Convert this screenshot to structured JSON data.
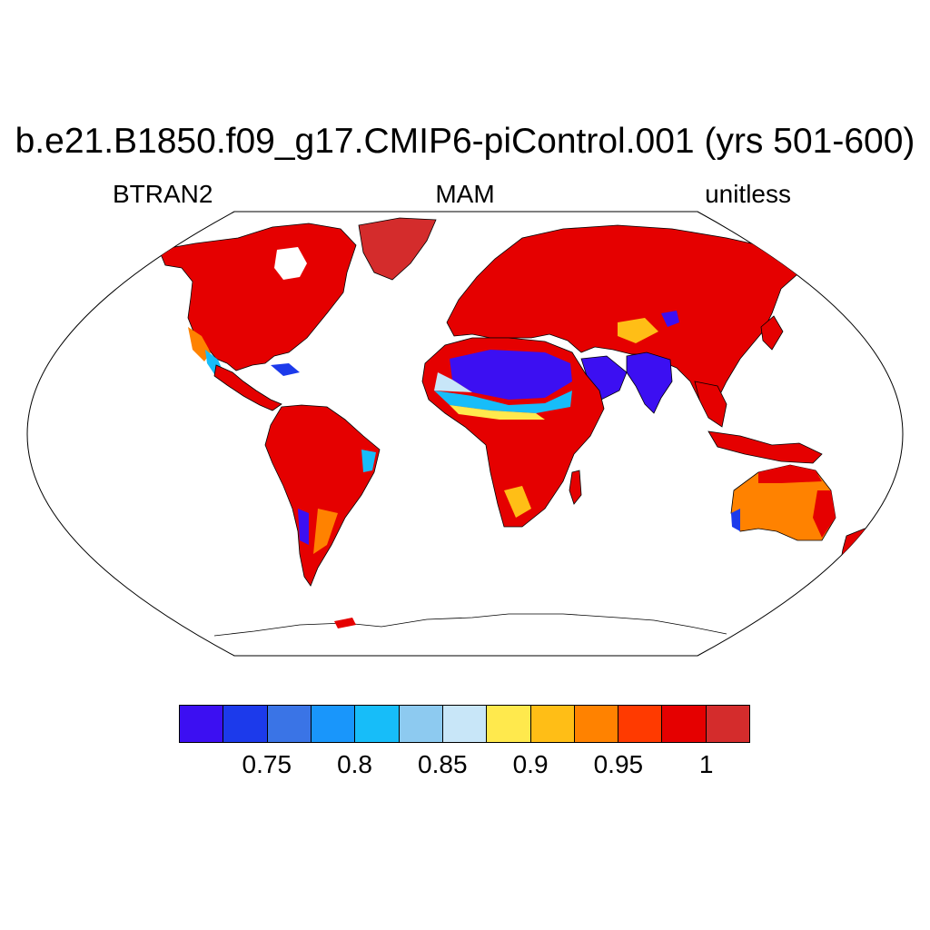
{
  "title": "b.e21.B1850.f09_g17.CMIP6-piControl.001 (yrs 501-600)",
  "subtitle_left": "BTRAN2",
  "subtitle_center": "MAM",
  "subtitle_right": "unitless",
  "colorbar": {
    "colors": [
      "#3c0ff2",
      "#1c3aeb",
      "#3a74e6",
      "#1996fb",
      "#17bdf9",
      "#8dcaf0",
      "#c8e6f8",
      "#ffe94d",
      "#ffbe16",
      "#ff8200",
      "#ff3a00",
      "#e50000",
      "#d42c2c"
    ],
    "tick_labels": [
      "0.75",
      "0.8",
      "0.85",
      "0.9",
      "0.95",
      "1"
    ]
  },
  "map": {
    "projection": "Robinson",
    "variable": "BTRAN2",
    "land_fill_dominant": "#e50000",
    "regions": [
      {
        "name": "North America",
        "level": 1.0,
        "color": "#e50000"
      },
      {
        "name": "Greenland",
        "level": 1.0,
        "color": "#d42c2c"
      },
      {
        "name": "South America",
        "level": 1.0,
        "color": "#e50000"
      },
      {
        "name": "Africa",
        "level": 1.0,
        "color": "#e50000"
      },
      {
        "name": "Sahara",
        "level": 0.7,
        "color": "#3c0ff2"
      },
      {
        "name": "Eurasia",
        "level": 1.0,
        "color": "#e50000"
      },
      {
        "name": "India",
        "level": 0.7,
        "color": "#3c0ff2"
      },
      {
        "name": "Australia",
        "level": 0.95,
        "color": "#ff8200"
      },
      {
        "name": "Antarctica",
        "level": null,
        "color": "#ffffff"
      }
    ]
  }
}
